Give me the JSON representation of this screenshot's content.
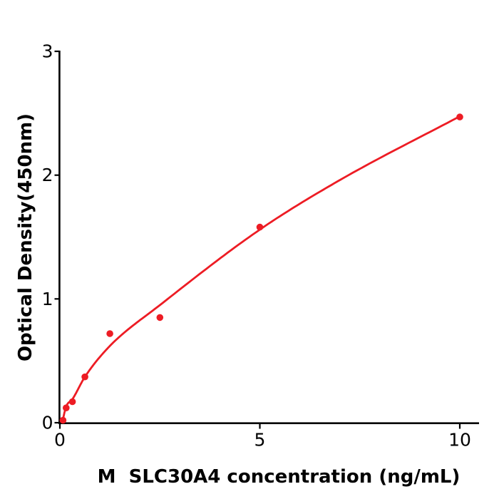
{
  "figure": {
    "background_color": "#ffffff",
    "kind": "ELISA standard curve plot"
  },
  "chart_data": {
    "type": "scatter",
    "title": "",
    "xlabel": "M  SLC30A4 concentration (ng/mL)",
    "ylabel": "Optical Density(450nm)",
    "xlim": [
      0,
      10.5
    ],
    "ylim": [
      0,
      3
    ],
    "x_ticks": [
      0,
      5,
      10
    ],
    "y_ticks": [
      0,
      1,
      2,
      3
    ],
    "grid": false,
    "legend": null,
    "marker_color": "#ed1c24",
    "line_color": "#ed1c24",
    "axis_color": "#000000",
    "points": {
      "x": [
        0.078,
        0.156,
        0.313,
        0.625,
        1.25,
        2.5,
        5,
        10
      ],
      "y": [
        0.02,
        0.12,
        0.17,
        0.37,
        0.72,
        0.85,
        1.58,
        2.47
      ]
    },
    "fit_curve": {
      "x": [
        0.07,
        0.156,
        0.313,
        0.625,
        1.25,
        2.5,
        5,
        7,
        10
      ],
      "y": [
        0.02,
        0.13,
        0.19,
        0.37,
        0.62,
        0.95,
        1.56,
        1.96,
        2.475
      ]
    }
  }
}
